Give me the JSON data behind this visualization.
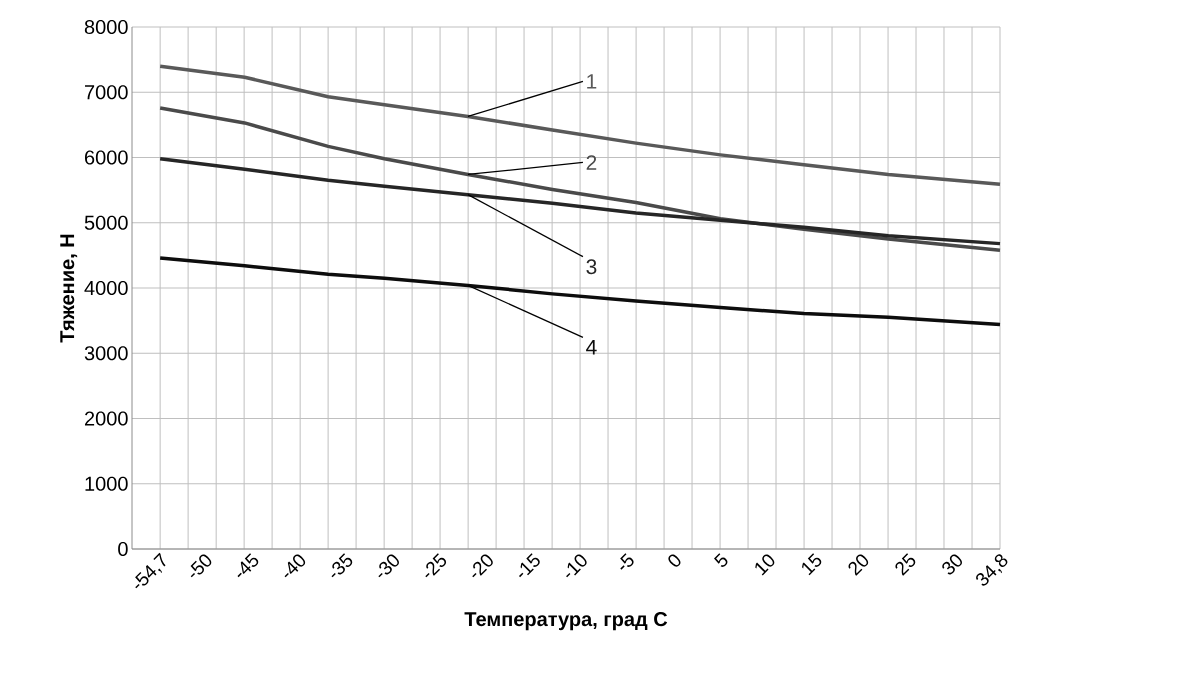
{
  "chart_data": {
    "type": "line",
    "xlabel": "Температура, град С",
    "ylabel": "Тяжение, Н",
    "x": [
      -54.7,
      -45.7,
      -36.8,
      -30.8,
      -21.9,
      -12.9,
      -4.0,
      5.0,
      13.9,
      22.9,
      34.8
    ],
    "series": [
      {
        "name": "1",
        "color": "#595959",
        "values": [
          7400,
          7230,
          6930,
          6810,
          6630,
          6420,
          6220,
          6040,
          5890,
          5740,
          5590
        ]
      },
      {
        "name": "2",
        "color": "#4a4a4a",
        "values": [
          6760,
          6530,
          6170,
          5980,
          5740,
          5510,
          5310,
          5060,
          4900,
          4750,
          4580
        ]
      },
      {
        "name": "3",
        "color": "#262626",
        "values": [
          5980,
          5820,
          5650,
          5560,
          5430,
          5300,
          5150,
          5040,
          4930,
          4800,
          4680
        ]
      },
      {
        "name": "4",
        "color": "#0d0d0d",
        "values": [
          4460,
          4340,
          4210,
          4150,
          4040,
          3910,
          3800,
          3700,
          3610,
          3550,
          3440
        ]
      }
    ],
    "xlim": [
      -57.7,
      34.8
    ],
    "ylim": [
      0,
      8000
    ],
    "xticks": [
      {
        "value": -54.7,
        "label": "-54,7"
      },
      -50,
      -45,
      -40,
      -35,
      -30,
      -25,
      -20,
      -15,
      -10,
      -5,
      0,
      5,
      10,
      15,
      20,
      25,
      30,
      {
        "value": 34.8,
        "label": "34,8"
      },
      {
        "value": -54.7,
        "label": null
      },
      {
        "value": -51.72,
        "label": null
      },
      {
        "value": -48.73,
        "label": null
      },
      {
        "value": -45.75,
        "label": null
      },
      {
        "value": -42.77,
        "label": null
      },
      {
        "value": -39.78,
        "label": null
      },
      {
        "value": -36.8,
        "label": null
      },
      {
        "value": -33.82,
        "label": null
      },
      {
        "value": -30.83,
        "label": null
      },
      {
        "value": -27.85,
        "label": null
      },
      {
        "value": -24.87,
        "label": null
      },
      {
        "value": -21.88,
        "label": null
      },
      {
        "value": -18.9,
        "label": null
      },
      {
        "value": -15.92,
        "label": null
      },
      {
        "value": -12.93,
        "label": null
      },
      {
        "value": -9.95,
        "label": null
      },
      {
        "value": -6.97,
        "label": null
      },
      {
        "value": -3.98,
        "label": null
      },
      {
        "value": -1.0,
        "label": null
      },
      {
        "value": 1.98,
        "label": null
      },
      {
        "value": 4.97,
        "label": null
      },
      {
        "value": 7.95,
        "label": null
      },
      {
        "value": 10.93,
        "label": null
      },
      {
        "value": 13.92,
        "label": null
      },
      {
        "value": 16.9,
        "label": null
      },
      {
        "value": 19.88,
        "label": null
      },
      {
        "value": 22.87,
        "label": null
      },
      {
        "value": 25.85,
        "label": null
      },
      {
        "value": 28.83,
        "label": null
      },
      {
        "value": 31.82,
        "label": null
      },
      {
        "value": 34.8,
        "label": null
      }
    ],
    "yticks": [
      0,
      1000,
      2000,
      3000,
      4000,
      5000,
      6000,
      7000,
      8000
    ],
    "grid": true
  }
}
